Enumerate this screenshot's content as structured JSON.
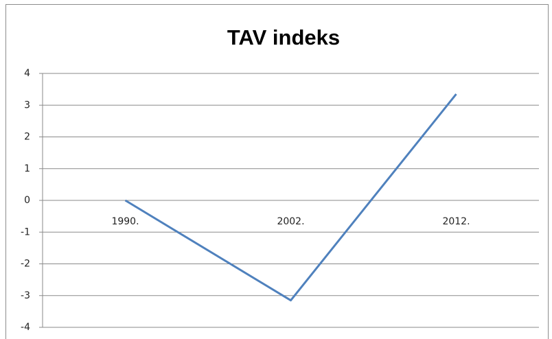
{
  "chart_data": {
    "type": "line",
    "title": "TAV indeks",
    "categories": [
      "1990.",
      "2002.",
      "2012."
    ],
    "values": [
      0,
      -3.15,
      3.35
    ],
    "color": "#4f81bd",
    "ylim": [
      -4,
      4
    ],
    "yticks": [
      -4,
      -3,
      -2,
      -1,
      0,
      1,
      2,
      3,
      4
    ],
    "grid": true
  }
}
